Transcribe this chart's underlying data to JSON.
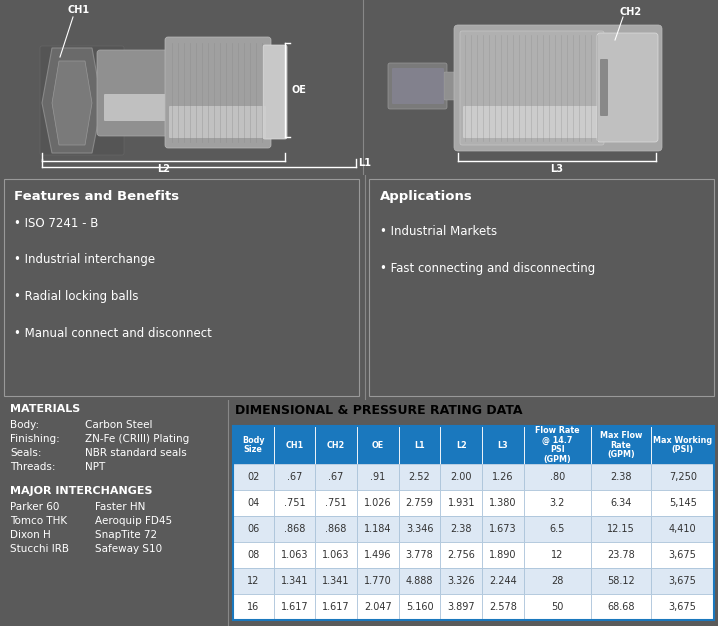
{
  "bg_color": "#5a5a5a",
  "top_bg": "#000000",
  "mid_bg": "#6b6b6b",
  "bot_bg": "#6b6b6b",
  "border_color": "#888888",
  "features_title": "Features and Benefits",
  "features_bullets": [
    "ISO 7241 - B",
    "Industrial interchange",
    "Radial locking balls",
    "Manual connect and disconnect"
  ],
  "applications_title": "Applications",
  "applications_bullets": [
    "Industrial Markets",
    "Fast connecting and disconnecting"
  ],
  "materials_title": "MATERIALS",
  "materials": [
    [
      "Body:",
      "Carbon Steel"
    ],
    [
      "Finishing:",
      "ZN-Fe (CRIII) Plating"
    ],
    [
      "Seals:",
      "NBR standard seals"
    ],
    [
      "Threads:",
      "NPT"
    ]
  ],
  "interchanges_title": "MAJOR INTERCHANGES",
  "interchanges": [
    [
      "Parker 60",
      "Faster HN"
    ],
    [
      "Tomco THK",
      "Aeroquip FD45"
    ],
    [
      "Dixon H",
      "SnapTite 72"
    ],
    [
      "Stucchi IRB",
      "Safeway S10"
    ]
  ],
  "table_title": "DIMENSIONAL & PRESSURE RATING DATA",
  "table_headers": [
    "Body\nSize",
    "CH1",
    "CH2",
    "OE",
    "L1",
    "L2",
    "L3",
    "Flow Rate\n@ 14.7\nPSI\n(GPM)",
    "Max Flow\nRate\n(GPM)",
    "Max Working\n(PSI)"
  ],
  "table_data": [
    [
      "02",
      ".67",
      ".67",
      ".91",
      "2.52",
      "2.00",
      "1.26",
      ".80",
      "2.38",
      "7,250"
    ],
    [
      "04",
      ".751",
      ".751",
      "1.026",
      "2.759",
      "1.931",
      "1.380",
      "3.2",
      "6.34",
      "5,145"
    ],
    [
      "06",
      ".868",
      ".868",
      "1.184",
      "3.346",
      "2.38",
      "1.673",
      "6.5",
      "12.15",
      "4,410"
    ],
    [
      "08",
      "1.063",
      "1.063",
      "1.496",
      "3.778",
      "2.756",
      "1.890",
      "12",
      "23.78",
      "3,675"
    ],
    [
      "12",
      "1.341",
      "1.341",
      "1.770",
      "4.888",
      "3.326",
      "2.244",
      "28",
      "58.12",
      "3,675"
    ],
    [
      "16",
      "1.617",
      "1.617",
      "2.047",
      "5.160",
      "3.897",
      "2.578",
      "50",
      "68.68",
      "3,675"
    ]
  ],
  "table_hdr_bg": "#1a78be",
  "table_hdr_fg": "#ffffff",
  "table_row_odd": "#ffffff",
  "table_row_even": "#dde8f4",
  "table_text": "#333333",
  "table_border": "#1a78be",
  "white": "#ffffff",
  "dim_line_color": "#ffffff",
  "label_color": "#ffffff"
}
